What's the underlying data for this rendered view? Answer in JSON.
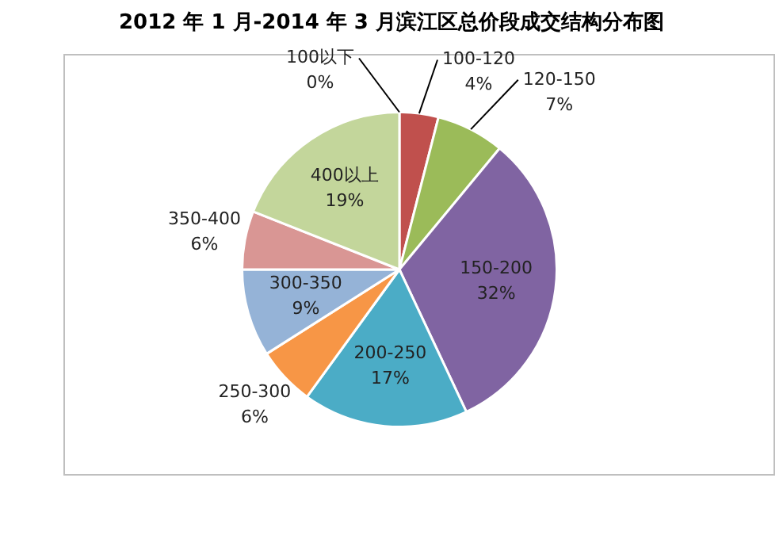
{
  "chart_data": {
    "type": "pie",
    "title": "2012 年 1 月-2014 年 3 月滨江区总价段成交结构分布图",
    "categories": [
      "100以下",
      "100-120",
      "120-150",
      "150-200",
      "200-250",
      "250-300",
      "300-350",
      "350-400",
      "400以上"
    ],
    "values": [
      0,
      4,
      7,
      32,
      17,
      6,
      9,
      6,
      19
    ],
    "value_labels": [
      "0%",
      "4%",
      "7%",
      "32%",
      "17%",
      "6%",
      "9%",
      "6%",
      "19%"
    ],
    "colors": [
      "#4f81bd",
      "#c0504d",
      "#9bbb59",
      "#8064a2",
      "#4bacc6",
      "#f79646",
      "#95b3d7",
      "#d99694",
      "#c3d69b"
    ],
    "legend": false
  }
}
